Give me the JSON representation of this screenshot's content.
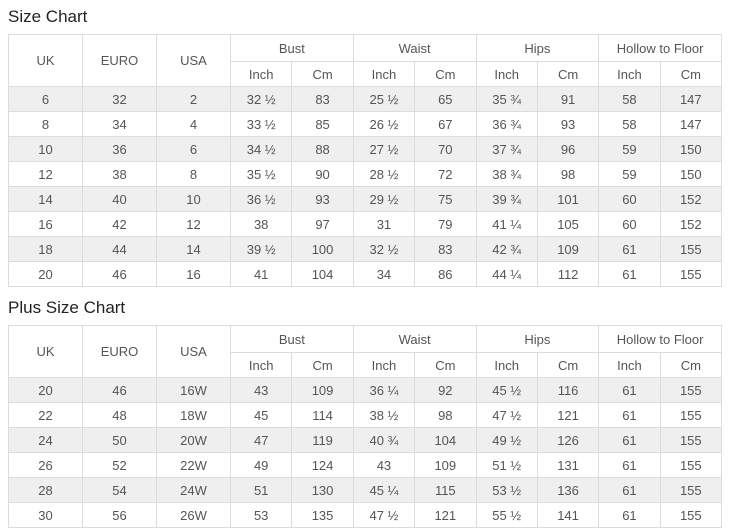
{
  "theme": {
    "border_color": "#dcdcdc",
    "stripe_color": "#efefef",
    "text_color": "#555555",
    "title_color": "#222222",
    "background_color": "#ffffff"
  },
  "tables": [
    {
      "title": "Size Chart",
      "columns": [
        {
          "label": "UK"
        },
        {
          "label": "EURO"
        },
        {
          "label": "USA"
        },
        {
          "label": "Bust",
          "subs": [
            "Inch",
            "Cm"
          ]
        },
        {
          "label": "Waist",
          "subs": [
            "Inch",
            "Cm"
          ]
        },
        {
          "label": "Hips",
          "subs": [
            "Inch",
            "Cm"
          ]
        },
        {
          "label": "Hollow to Floor",
          "subs": [
            "Inch",
            "Cm"
          ]
        }
      ],
      "rows": [
        [
          "6",
          "32",
          "2",
          "32 ½",
          "83",
          "25 ½",
          "65",
          "35 ¾",
          "91",
          "58",
          "147"
        ],
        [
          "8",
          "34",
          "4",
          "33 ½",
          "85",
          "26 ½",
          "67",
          "36 ¾",
          "93",
          "58",
          "147"
        ],
        [
          "10",
          "36",
          "6",
          "34 ½",
          "88",
          "27 ½",
          "70",
          "37 ¾",
          "96",
          "59",
          "150"
        ],
        [
          "12",
          "38",
          "8",
          "35 ½",
          "90",
          "28 ½",
          "72",
          "38 ¾",
          "98",
          "59",
          "150"
        ],
        [
          "14",
          "40",
          "10",
          "36 ½",
          "93",
          "29 ½",
          "75",
          "39 ¾",
          "101",
          "60",
          "152"
        ],
        [
          "16",
          "42",
          "12",
          "38",
          "97",
          "31",
          "79",
          "41 ¼",
          "105",
          "60",
          "152"
        ],
        [
          "18",
          "44",
          "14",
          "39 ½",
          "100",
          "32 ½",
          "83",
          "42 ¾",
          "109",
          "61",
          "155"
        ],
        [
          "20",
          "46",
          "16",
          "41",
          "104",
          "34",
          "86",
          "44 ¼",
          "112",
          "61",
          "155"
        ]
      ]
    },
    {
      "title": "Plus Size Chart",
      "columns": [
        {
          "label": "UK"
        },
        {
          "label": "EURO"
        },
        {
          "label": "USA"
        },
        {
          "label": "Bust",
          "subs": [
            "Inch",
            "Cm"
          ]
        },
        {
          "label": "Waist",
          "subs": [
            "Inch",
            "Cm"
          ]
        },
        {
          "label": "Hips",
          "subs": [
            "Inch",
            "Cm"
          ]
        },
        {
          "label": "Hollow to Floor",
          "subs": [
            "Inch",
            "Cm"
          ]
        }
      ],
      "rows": [
        [
          "20",
          "46",
          "16W",
          "43",
          "109",
          "36 ¼",
          "92",
          "45 ½",
          "116",
          "61",
          "155"
        ],
        [
          "22",
          "48",
          "18W",
          "45",
          "114",
          "38 ½",
          "98",
          "47 ½",
          "121",
          "61",
          "155"
        ],
        [
          "24",
          "50",
          "20W",
          "47",
          "119",
          "40 ¾",
          "104",
          "49 ½",
          "126",
          "61",
          "155"
        ],
        [
          "26",
          "52",
          "22W",
          "49",
          "124",
          "43",
          "109",
          "51 ½",
          "131",
          "61",
          "155"
        ],
        [
          "28",
          "54",
          "24W",
          "51",
          "130",
          "45 ¼",
          "115",
          "53 ½",
          "136",
          "61",
          "155"
        ],
        [
          "30",
          "56",
          "26W",
          "53",
          "135",
          "47 ½",
          "121",
          "55 ½",
          "141",
          "61",
          "155"
        ]
      ]
    }
  ]
}
